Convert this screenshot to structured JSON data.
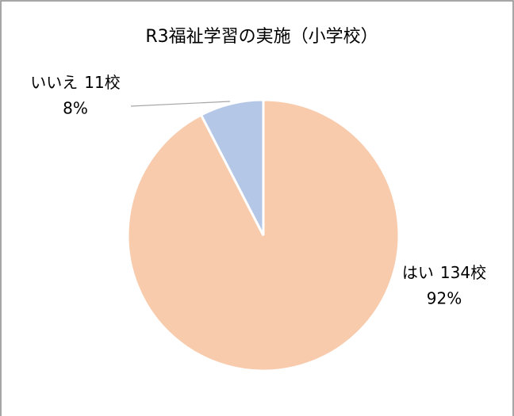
{
  "chart_data": {
    "type": "pie",
    "title": "R3福祉学習の実施（小学校）",
    "categories": [
      "はい",
      "いいえ"
    ],
    "values": [
      134,
      11
    ],
    "value_labels": [
      "134校",
      "11校"
    ],
    "percentages": [
      92,
      8
    ],
    "percentage_labels": [
      "92%",
      "8%"
    ],
    "colors": [
      "#f8cbad",
      "#b4c7e7"
    ]
  }
}
